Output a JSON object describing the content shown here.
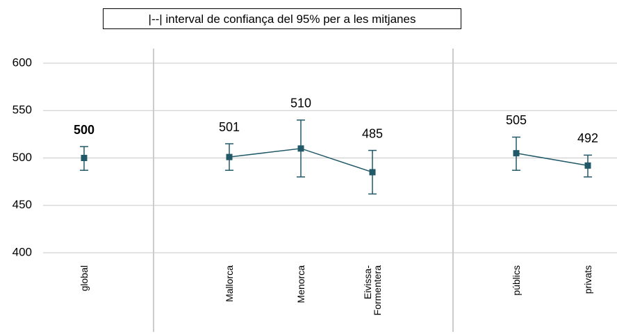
{
  "chart_data": {
    "type": "errorbar",
    "legend_text": "|--| interval de confiança del 95% per a les mitjanes",
    "categories": [
      "global",
      "Mallorca",
      "Menorca",
      "Eivissa-\nFormentera",
      "públics",
      "privats"
    ],
    "series": [
      {
        "color": "#215968",
        "values": [
          500,
          null,
          null,
          null,
          null,
          null
        ],
        "low": [
          487,
          null,
          null,
          null,
          null,
          null
        ],
        "high": [
          512,
          null,
          null,
          null,
          null,
          null
        ]
      },
      {
        "color": "#215968",
        "values": [
          null,
          501,
          510,
          485,
          null,
          null
        ],
        "low": [
          null,
          487,
          480,
          462,
          null,
          null
        ],
        "high": [
          null,
          515,
          540,
          508,
          null,
          null
        ]
      },
      {
        "color": "#215968",
        "values": [
          null,
          null,
          null,
          null,
          505,
          492
        ],
        "low": [
          null,
          null,
          null,
          null,
          487,
          480
        ],
        "high": [
          null,
          null,
          null,
          null,
          522,
          503
        ]
      }
    ],
    "ylim": [
      400,
      600
    ],
    "yticks": [
      400,
      450,
      500,
      550,
      600
    ],
    "grid": true
  }
}
